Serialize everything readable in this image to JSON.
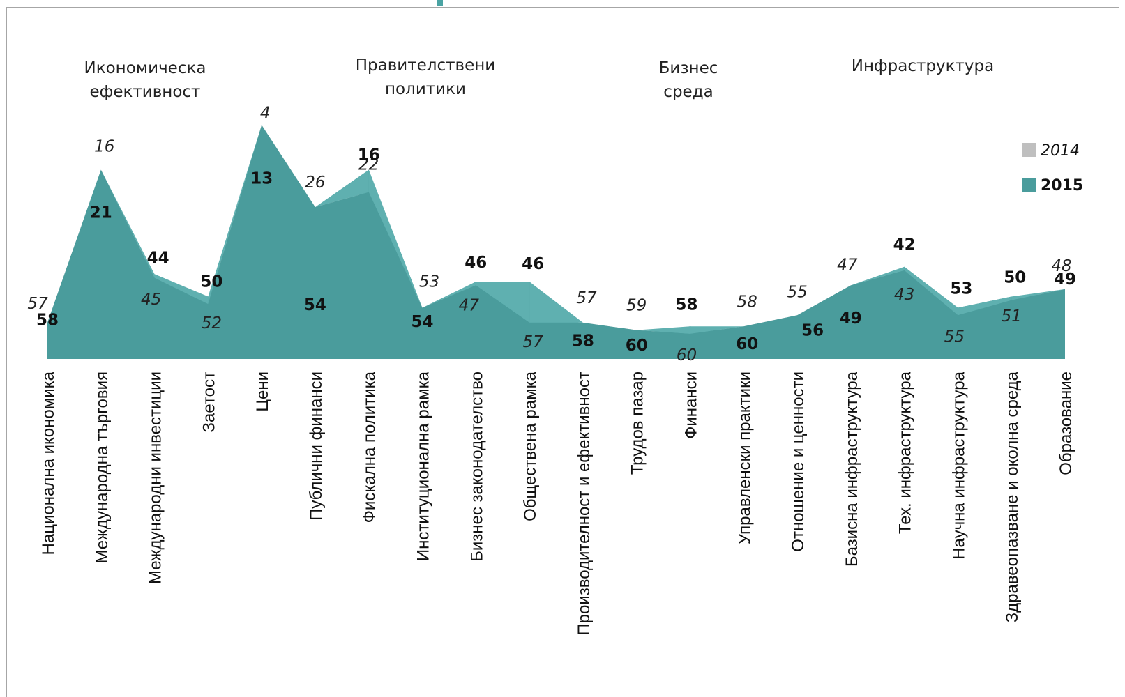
{
  "chart_data": {
    "type": "area",
    "categories": [
      "Национална икономика",
      "Международна търговия",
      "Международни инвестиции",
      "Заетост",
      "Цени",
      "Публични финанси",
      "Фискална политика",
      "Институционална рамка",
      "Бизнес законодателство",
      "Обществена рамка",
      "Производителност и ефективност",
      "Трудов пазар",
      "Финанси",
      "Управленски практики",
      "Отношение и ценности",
      "Базисна инфраструктура",
      "Тех. инфраструктура",
      "Научна инфраструктура",
      "Здравеопазване и околна среда",
      "Образование"
    ],
    "series": [
      {
        "name": "2014",
        "values": [
          57,
          16,
          45,
          52,
          4,
          26,
          22,
          53,
          47,
          57,
          57,
          59,
          60,
          58,
          55,
          47,
          43,
          55,
          51,
          48
        ]
      },
      {
        "name": "2015",
        "values": [
          58,
          21,
          44,
          50,
          13,
          54,
          16,
          54,
          46,
          46,
          58,
          60,
          58,
          60,
          56,
          49,
          42,
          53,
          50,
          49
        ]
      }
    ],
    "groups": [
      {
        "lines": [
          "Икономическа",
          "ефективност"
        ]
      },
      {
        "lines": [
          "Правителствени",
          "политики"
        ]
      },
      {
        "lines": [
          "Бизнес",
          "среда"
        ]
      },
      {
        "lines": [
          "Инфраструктура"
        ]
      }
    ],
    "legend": {
      "position": "right",
      "entries": [
        "2014",
        "2015"
      ]
    },
    "colors": {
      "2014": "#bfbfbf",
      "2015": "#4a9c9c",
      "2015_overlay": "#5fb0b0"
    },
    "y_scale": "reversed-rank",
    "grid": false
  }
}
